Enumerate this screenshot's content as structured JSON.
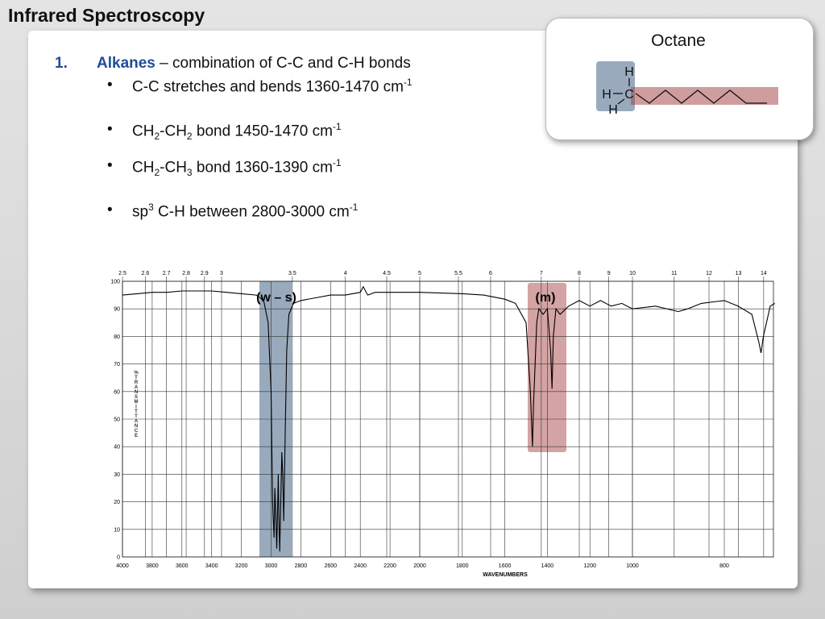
{
  "title": "Infrared Spectroscopy",
  "item": {
    "number": "1.",
    "name": "Alkanes",
    "text": " – combination of C-C and C-H bonds"
  },
  "bullets": [
    [
      "C-C stretches and bends 1360-1470 cm",
      "-1"
    ],
    [
      "CH",
      "2",
      "-CH",
      "2",
      " bond 1450-1470 cm",
      "-1"
    ],
    [
      "CH",
      "2",
      "-CH",
      "3",
      " bond 1360-1390 cm",
      "-1"
    ],
    [
      "sp",
      "3",
      " C-H between 2800-3000 cm",
      "-1"
    ]
  ],
  "octane": {
    "title": "Octane",
    "atoms": [
      "H",
      "H",
      "C",
      "H"
    ]
  },
  "chart_data": {
    "type": "line",
    "x_label": "WAVENUMBERS",
    "y_label": "%TRANSMITTANCE",
    "color": "#000000",
    "x": [
      4000,
      3900,
      3800,
      3700,
      3600,
      3500,
      3400,
      3300,
      3200,
      3100,
      3050,
      3020,
      3000,
      2990,
      2980,
      2975,
      2968,
      2962,
      2958,
      2952,
      2948,
      2942,
      2935,
      2928,
      2922,
      2915,
      2905,
      2895,
      2880,
      2850,
      2800,
      2700,
      2600,
      2500,
      2400,
      2380,
      2350,
      2300,
      2200,
      2100,
      2000,
      1800,
      1700,
      1600,
      1550,
      1500,
      1480,
      1470,
      1465,
      1450,
      1440,
      1420,
      1400,
      1385,
      1378,
      1372,
      1360,
      1340,
      1300,
      1250,
      1200,
      1150,
      1100,
      1050,
      1000,
      950,
      900,
      880,
      850,
      800,
      770,
      740,
      725,
      720,
      715,
      700,
      690
    ],
    "values": [
      95,
      95.5,
      96,
      96,
      96.5,
      96.5,
      96.5,
      96,
      95.5,
      95,
      93,
      85,
      60,
      20,
      7,
      25,
      15,
      3,
      12,
      30,
      15,
      2,
      20,
      38,
      30,
      13,
      45,
      75,
      88,
      92,
      93,
      94,
      95,
      95,
      96,
      98,
      95,
      96,
      96,
      96,
      96,
      95.5,
      95,
      93.5,
      92,
      85,
      60,
      40,
      55,
      85,
      90,
      88,
      90,
      75,
      61,
      80,
      90,
      88,
      91,
      93,
      91,
      93,
      91,
      92,
      90,
      91,
      89,
      90,
      92,
      93,
      91,
      88,
      78,
      74,
      80,
      91,
      92
    ],
    "xlim": [
      4000,
      690
    ],
    "ylim": [
      0,
      100
    ],
    "xticks": [
      4000,
      3800,
      3600,
      3400,
      3200,
      3000,
      2800,
      2600,
      2400,
      2200,
      2000,
      1800,
      1600,
      1400,
      1200,
      1000,
      800
    ],
    "x2ticks": [
      2.5,
      2.6,
      2.7,
      2.8,
      2.9,
      3,
      3.5,
      4,
      4.5,
      5,
      5.5,
      6,
      7,
      8,
      9,
      10,
      11,
      12,
      13,
      14
    ],
    "yticks": [
      0,
      10,
      20,
      30,
      40,
      50,
      60,
      70,
      80,
      90,
      100
    ],
    "grid": true,
    "annotations": [
      "(w – s)",
      "(m)"
    ]
  }
}
